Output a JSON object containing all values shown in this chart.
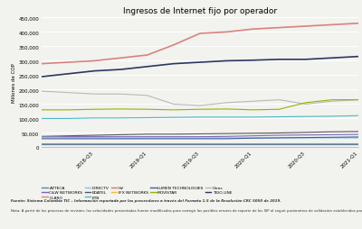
{
  "title": "Ingresos de Internet fijo por operador",
  "ylabel": "Millones de COP",
  "series": {
    "CLARO": {
      "color": "#d9827d",
      "data": [
        290000,
        295000,
        300000,
        310000,
        320000,
        355000,
        395000,
        400000,
        410000,
        415000,
        420000,
        425000,
        430000
      ]
    },
    "TIGO-UNE": {
      "color": "#2d3561",
      "data": [
        245000,
        255000,
        265000,
        270000,
        280000,
        290000,
        295000,
        300000,
        302000,
        305000,
        305000,
        310000,
        315000
      ]
    },
    "Otros": {
      "color": "#b8b8b8",
      "data": [
        195000,
        190000,
        185000,
        185000,
        180000,
        150000,
        145000,
        155000,
        160000,
        165000,
        150000,
        160000,
        165000
      ]
    },
    "MOVISTAR": {
      "color": "#8cb800",
      "data": [
        130000,
        130000,
        132000,
        133000,
        132000,
        130000,
        132000,
        133000,
        130000,
        132000,
        155000,
        165000,
        165000
      ]
    },
    "ETB": {
      "color": "#4cb8c4",
      "data": [
        100000,
        100000,
        102000,
        102000,
        103000,
        104000,
        105000,
        105000,
        105000,
        106000,
        107000,
        108000,
        110000
      ]
    },
    "EDATEL": {
      "color": "#555555",
      "data": [
        38000,
        40000,
        42000,
        44000,
        46000,
        46000,
        47000,
        48000,
        49000,
        50000,
        52000,
        54000,
        55000
      ]
    },
    "C&W NETWORKS": {
      "color": "#7b68b5",
      "data": [
        36000,
        37000,
        37000,
        37000,
        37000,
        37000,
        37000,
        38000,
        40000,
        42000,
        43000,
        44000,
        45000
      ]
    },
    "DIRECTV": {
      "color": "#82c3e0",
      "data": [
        35000,
        34000,
        34000,
        33000,
        33000,
        33000,
        33000,
        33000,
        33000,
        33000,
        33000,
        33000,
        33000
      ]
    },
    "LUMEN TECHNOLOGIES": {
      "color": "#3b5fa0",
      "data": [
        30000,
        30000,
        30000,
        30000,
        30000,
        30000,
        30000,
        30000,
        32000,
        33000,
        34000,
        35000,
        36000
      ]
    },
    "HV": {
      "color": "#e07b35",
      "data": [
        15000,
        15000,
        15000,
        15000,
        15000,
        15000,
        15000,
        15000,
        15000,
        15000,
        15000,
        15000,
        15000
      ]
    },
    "IFX NETWORKS": {
      "color": "#e8c235",
      "data": [
        12000,
        12000,
        12000,
        12000,
        12000,
        12000,
        12000,
        12000,
        12000,
        12000,
        12000,
        12000,
        12000
      ]
    },
    "AZTECA": {
      "color": "#4d88c4",
      "data": [
        10000,
        10000,
        10000,
        10000,
        10000,
        10000,
        10000,
        10000,
        10000,
        10000,
        10000,
        10000,
        10000
      ]
    }
  },
  "n_points": 13,
  "xlim": [
    0,
    12
  ],
  "ylim": [
    0,
    450000
  ],
  "yticks": [
    0,
    50000,
    100000,
    150000,
    200000,
    250000,
    300000,
    350000,
    400000,
    450000
  ],
  "ytick_labels": [
    "0",
    "50,000",
    "100,000",
    "150,000",
    "200,000",
    "250,000",
    "300,000",
    "350,000",
    "400,000",
    "450,000"
  ],
  "xtick_positions": [
    2,
    4,
    6,
    8,
    10,
    12
  ],
  "xtick_labels": [
    "2018-Q3",
    "2019-Q1",
    "2019-Q3",
    "2020-Q1",
    "2020-Q3",
    "2021-Q1"
  ],
  "background_color": "#f2f2ee",
  "plot_bg_color": "#f2f2ee",
  "grid_color": "#ffffff",
  "legend_order": [
    "AZTECA",
    "C&W NETWORKS",
    "CLARO",
    "DIRECTV",
    "EDATEL",
    "ETB",
    "HV",
    "IFX NETWORKS",
    "LUMEN TECHNOLOGIES",
    "MOVISTAR",
    "Otros",
    "TIGO-UNE"
  ],
  "footnote1": "Fuente: Sistema Colombia TIC – Información reportada por los proveedores a través del Formato 1.5 de la Resolución CRC 5050 de 2019.",
  "footnote2": "Nota: A partir de los procesos de revisión, las velocidades presentadas fueron modificadas para corregir los posibles errores de reporte de los ISP al seguir parámetros de validación establecidos para las tecnologías de los accesos."
}
